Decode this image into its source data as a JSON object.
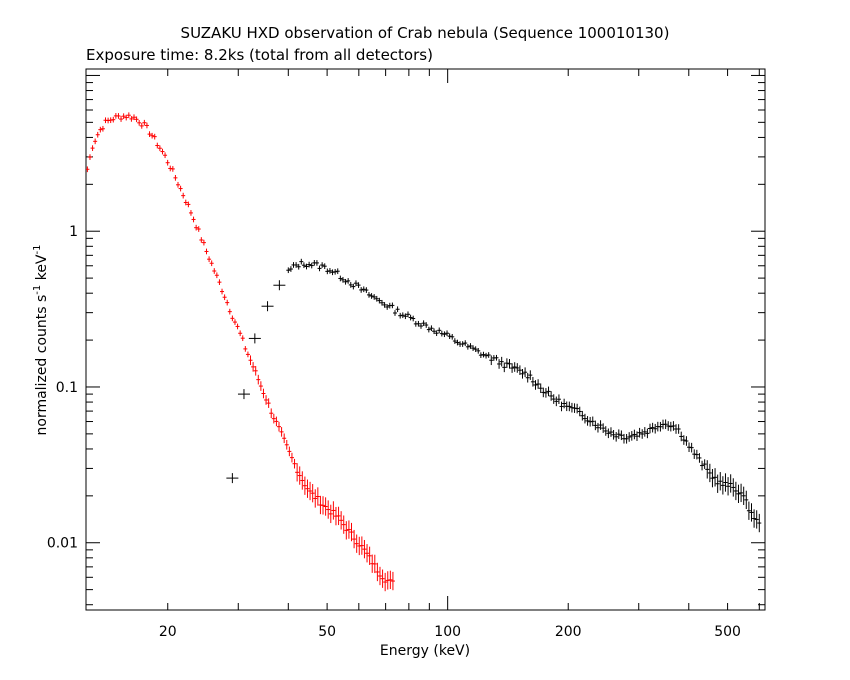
{
  "chart_data": {
    "type": "scatter",
    "title": "SUZAKU HXD observation of Crab nebula (Sequence 100010130)",
    "subtitle": "Exposure time: 8.2ks (total from all detectors)",
    "xlabel": "Energy (keV)",
    "ylabel": "normalized counts s",
    "ylabel_sup1": "-1",
    "ylabel_mid": " keV",
    "ylabel_sup2": "-1",
    "xscale": "log",
    "yscale": "log",
    "xlim": [
      12.5,
      620
    ],
    "ylim": [
      0.0037,
      11
    ],
    "grid": false,
    "legend": "none",
    "x_ticks": [
      20,
      50,
      100,
      200,
      500
    ],
    "x_tick_labels": [
      "20",
      "50",
      "100",
      "200",
      "500"
    ],
    "y_ticks": [
      0.01,
      0.1,
      1
    ],
    "y_tick_labels": [
      "0.01",
      "0.1",
      "1"
    ],
    "series": [
      {
        "color": "#ff0000",
        "points": [
          [
            12.6,
            2.5
          ],
          [
            13.0,
            3.6
          ],
          [
            13.5,
            4.4
          ],
          [
            14.0,
            5.0
          ],
          [
            14.6,
            5.3
          ],
          [
            15.2,
            5.45
          ],
          [
            15.8,
            5.5
          ],
          [
            16.4,
            5.4
          ],
          [
            17.0,
            5.1
          ],
          [
            17.6,
            4.7
          ],
          [
            18.2,
            4.2
          ],
          [
            18.9,
            3.6
          ],
          [
            19.6,
            3.1
          ],
          [
            20.3,
            2.6
          ],
          [
            21.1,
            2.1
          ],
          [
            21.9,
            1.7
          ],
          [
            22.8,
            1.35
          ],
          [
            23.7,
            1.05
          ],
          [
            24.6,
            0.82
          ],
          [
            25.6,
            0.64
          ],
          [
            26.6,
            0.5
          ],
          [
            27.7,
            0.39
          ],
          [
            28.8,
            0.3
          ],
          [
            30.0,
            0.235
          ],
          [
            31.2,
            0.18
          ],
          [
            32.5,
            0.14
          ],
          [
            33.9,
            0.107
          ],
          [
            35.3,
            0.083
          ],
          [
            36.8,
            0.064
          ],
          [
            38.4,
            0.05
          ],
          [
            40.0,
            0.039
          ],
          [
            41.7,
            0.031
          ],
          [
            43.5,
            0.025
          ],
          [
            45.4,
            0.021
          ],
          [
            47.4,
            0.019
          ],
          [
            49.5,
            0.017
          ],
          [
            51.7,
            0.0155
          ],
          [
            54.0,
            0.014
          ],
          [
            56.4,
            0.012
          ],
          [
            58.9,
            0.0105
          ],
          [
            61.5,
            0.0092
          ],
          [
            64.2,
            0.0078
          ],
          [
            67.0,
            0.0066
          ],
          [
            70.0,
            0.0058
          ],
          [
            73.0,
            0.0055
          ]
        ]
      },
      {
        "color": "#000000",
        "points": [
          [
            29.0,
            0.026
          ],
          [
            31.0,
            0.09
          ],
          [
            33.0,
            0.205
          ],
          [
            35.5,
            0.33
          ],
          [
            38.0,
            0.45
          ],
          [
            40.0,
            0.55
          ],
          [
            42.0,
            0.61
          ],
          [
            44.0,
            0.62
          ],
          [
            46.5,
            0.61
          ],
          [
            49.0,
            0.59
          ],
          [
            52.0,
            0.55
          ],
          [
            55.0,
            0.5
          ],
          [
            58.0,
            0.46
          ],
          [
            62.0,
            0.41
          ],
          [
            66.0,
            0.37
          ],
          [
            70.0,
            0.34
          ],
          [
            75.0,
            0.305
          ],
          [
            80.0,
            0.28
          ],
          [
            86.0,
            0.255
          ],
          [
            92.0,
            0.235
          ],
          [
            99.0,
            0.215
          ],
          [
            106.0,
            0.195
          ],
          [
            114.0,
            0.178
          ],
          [
            122.0,
            0.163
          ],
          [
            131.0,
            0.15
          ],
          [
            140.0,
            0.138
          ],
          [
            150.0,
            0.128
          ],
          [
            160.0,
            0.118
          ],
          [
            170.0,
            0.1
          ],
          [
            180.0,
            0.088
          ],
          [
            190.0,
            0.08
          ],
          [
            200.0,
            0.074
          ],
          [
            215.0,
            0.068
          ],
          [
            230.0,
            0.06
          ],
          [
            245.0,
            0.054
          ],
          [
            260.0,
            0.05
          ],
          [
            280.0,
            0.048
          ],
          [
            300.0,
            0.05
          ],
          [
            320.0,
            0.053
          ],
          [
            340.0,
            0.058
          ],
          [
            360.0,
            0.058
          ],
          [
            380.0,
            0.052
          ],
          [
            400.0,
            0.042
          ],
          [
            425.0,
            0.034
          ],
          [
            450.0,
            0.028
          ],
          [
            480.0,
            0.024
          ],
          [
            510.0,
            0.023
          ],
          [
            540.0,
            0.021
          ],
          [
            570.0,
            0.016
          ],
          [
            600.0,
            0.013
          ]
        ]
      }
    ]
  }
}
